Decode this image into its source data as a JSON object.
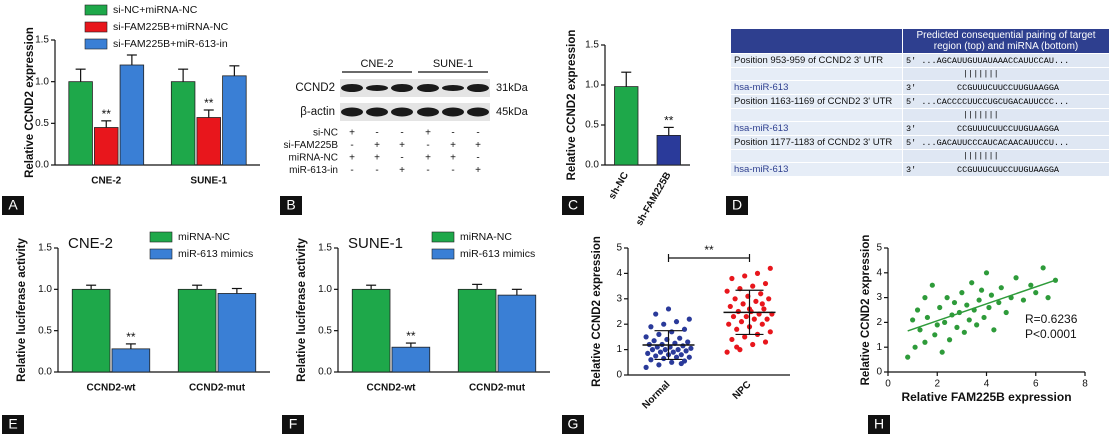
{
  "chart_data": [
    {
      "type": "bar",
      "panel": "A",
      "y_label": "Relative CCND2 expression",
      "categories": [
        "CNE-2",
        "SUNE-1"
      ],
      "series": [
        {
          "name": "si-NC+miRNA-NC",
          "color": "#1ea84a",
          "values": [
            1.0,
            1.0
          ],
          "errors": [
            0.15,
            0.15
          ],
          "annotations": [
            null,
            null
          ]
        },
        {
          "name": "si-FAM225B+miRNA-NC",
          "color": "#e8161c",
          "values": [
            0.45,
            0.57
          ],
          "errors": [
            0.08,
            0.09
          ],
          "annotations": [
            "**",
            "**"
          ]
        },
        {
          "name": "si-FAM225B+miR-613-in",
          "color": "#3a7fd5",
          "values": [
            1.2,
            1.07
          ],
          "errors": [
            0.12,
            0.12
          ],
          "annotations": [
            null,
            null
          ]
        }
      ],
      "ylim": [
        0,
        1.5
      ],
      "yticks": [
        {
          "value": 0,
          "label": "0.0"
        },
        0.5,
        {
          "value": 1,
          "label": "1.0"
        },
        1.5
      ]
    },
    {
      "type": "bar",
      "panel": "C",
      "y_label": "Relative CCND2 expression",
      "categories": [
        "sh-NC",
        "sh-FAM225B"
      ],
      "values": [
        0.98,
        0.37
      ],
      "errors": [
        0.18,
        0.1
      ],
      "colors": [
        "#1ea84a",
        "#2a3a9a"
      ],
      "annotations": [
        null,
        "**"
      ],
      "ylim": [
        0,
        1.5
      ],
      "yticks": [
        {
          "value": 0,
          "label": "0.0"
        },
        0.5,
        {
          "value": 1,
          "label": "1.0"
        },
        1.5
      ]
    },
    {
      "type": "bar",
      "panel": "E",
      "title": "CNE-2",
      "y_label": "Relative luciferase activity",
      "categories": [
        "CCND2-wt",
        "CCND2-mut"
      ],
      "series": [
        {
          "name": "miRNA-NC",
          "color": "#1ea84a",
          "values": [
            1.0,
            1.0
          ],
          "errors": [
            0.05,
            0.05
          ],
          "annotations": [
            null,
            null
          ]
        },
        {
          "name": "miR-613 mimics",
          "color": "#3a7fd5",
          "values": [
            0.28,
            0.95
          ],
          "errors": [
            0.06,
            0.06
          ],
          "annotations": [
            "**",
            null
          ]
        }
      ],
      "ylim": [
        0,
        1.5
      ],
      "yticks": [
        {
          "value": 0,
          "label": "0.0"
        },
        0.5,
        {
          "value": 1,
          "label": "1.0"
        },
        1.5
      ]
    },
    {
      "type": "bar",
      "panel": "F",
      "title": "SUNE-1",
      "y_label": "Relative luciferase activity",
      "categories": [
        "CCND2-wt",
        "CCND2-mut"
      ],
      "series": [
        {
          "name": "miRNA-NC",
          "color": "#1ea84a",
          "values": [
            1.0,
            1.0
          ],
          "errors": [
            0.05,
            0.06
          ],
          "annotations": [
            null,
            null
          ]
        },
        {
          "name": "miR-613 mimics",
          "color": "#3a7fd5",
          "values": [
            0.3,
            0.93
          ],
          "errors": [
            0.05,
            0.07
          ],
          "annotations": [
            "**",
            null
          ]
        }
      ],
      "ylim": [
        0,
        1.5
      ],
      "yticks": [
        {
          "value": 0,
          "label": "0.0"
        },
        0.5,
        {
          "value": 1,
          "label": "1.0"
        },
        1.5
      ]
    },
    {
      "type": "dotplot",
      "panel": "G",
      "y_label": "Relative CCND2 expression",
      "annotation": "**",
      "categories": [
        "Normal",
        "NPC"
      ],
      "colors": [
        "#2a3a9a",
        "#e8161c"
      ],
      "values": [
        [
          0.3,
          0.4,
          0.5,
          0.55,
          0.6,
          0.65,
          0.7,
          0.7,
          0.75,
          0.8,
          0.8,
          0.85,
          0.9,
          0.9,
          0.95,
          1.0,
          1.0,
          1.0,
          1.05,
          1.1,
          1.1,
          1.15,
          1.2,
          1.2,
          1.25,
          1.3,
          1.35,
          1.4,
          1.45,
          1.5,
          1.6,
          1.7,
          1.8,
          1.9,
          2.0,
          2.1,
          2.2,
          2.4,
          2.6,
          0.45
        ],
        [
          0.9,
          1.0,
          1.2,
          1.3,
          1.4,
          1.5,
          1.6,
          1.7,
          1.8,
          1.9,
          2.0,
          2.0,
          2.1,
          2.2,
          2.2,
          2.3,
          2.3,
          2.4,
          2.4,
          2.5,
          2.5,
          2.6,
          2.7,
          2.8,
          2.9,
          3.0,
          3.0,
          3.1,
          3.2,
          3.3,
          3.4,
          3.5,
          3.6,
          3.8,
          3.9,
          4.0,
          4.2,
          1.1,
          2.6,
          2.8
        ]
      ],
      "ylim": [
        0,
        5
      ],
      "yticks": [
        0,
        1,
        2,
        3,
        4,
        5
      ]
    },
    {
      "type": "scatter",
      "panel": "H",
      "x_label": "Relative FAM225B expression",
      "y_label": "Relative CCND2 expression",
      "annotations": [
        "R=0.6236",
        "P<0.0001"
      ],
      "color": "#2e9b3a",
      "x": [
        0.8,
        1.0,
        1.1,
        1.2,
        1.3,
        1.5,
        1.5,
        1.6,
        1.8,
        1.9,
        2.0,
        2.1,
        2.2,
        2.3,
        2.4,
        2.5,
        2.6,
        2.7,
        2.8,
        2.9,
        3.0,
        3.1,
        3.2,
        3.3,
        3.4,
        3.5,
        3.6,
        3.7,
        3.8,
        3.9,
        4.0,
        4.1,
        4.2,
        4.3,
        4.5,
        4.6,
        4.8,
        5.0,
        5.2,
        5.5,
        5.8,
        6.0,
        6.3,
        6.5,
        6.8
      ],
      "y": [
        0.6,
        2.1,
        1.0,
        2.5,
        1.7,
        3.0,
        1.2,
        2.2,
        3.5,
        1.5,
        1.9,
        2.6,
        0.8,
        2.0,
        3.0,
        1.3,
        2.3,
        2.8,
        1.8,
        2.4,
        3.2,
        1.6,
        2.7,
        2.1,
        3.6,
        2.5,
        1.9,
        2.9,
        3.3,
        2.2,
        4.0,
        2.6,
        3.1,
        1.7,
        2.8,
        3.4,
        2.4,
        3.0,
        3.8,
        2.9,
        3.5,
        3.2,
        4.2,
        3.0,
        3.7
      ],
      "xlim": [
        0,
        8
      ],
      "xticks": [
        0,
        2,
        4,
        6,
        8
      ],
      "ylim": [
        0,
        5
      ],
      "yticks": [
        0,
        1,
        2,
        3,
        4,
        5
      ]
    }
  ],
  "blot": {
    "panel": "B",
    "groups": [
      "CNE-2",
      "SUNE-1"
    ],
    "rows": [
      "CCND2",
      "β-actin"
    ],
    "sizes": [
      "31kDa",
      "45kDa"
    ],
    "conditions": [
      {
        "name": "si-NC",
        "marks": [
          "+",
          "-",
          "-",
          "+",
          "-",
          "-"
        ]
      },
      {
        "name": "si-FAM225B",
        "marks": [
          "-",
          "+",
          "+",
          "-",
          "+",
          "+"
        ]
      },
      {
        "name": "miRNA-NC",
        "marks": [
          "+",
          "+",
          "-",
          "+",
          "+",
          "-"
        ]
      },
      {
        "name": "miR-613-in",
        "marks": [
          "-",
          "-",
          "+",
          "-",
          "-",
          "+"
        ]
      }
    ]
  },
  "alignment": {
    "panel": "D",
    "header": "Predicted consequential pairing of target region (top) and miRNA (bottom)",
    "rows": [
      {
        "position": "Position 953-959 of CCND2 3' UTR",
        "top_end": "5'",
        "top": "...AGCAUUGUUAUAAACCAUUCCAU...",
        "pairs": "|||||||",
        "mirna": "hsa-miR-613",
        "bottom_end": "3'",
        "bottom": "CCGUUUCUUCCUUGUAAGGA"
      },
      {
        "position": "Position 1163-1169 of CCND2 3' UTR",
        "top_end": "5'",
        "top": "...CACCCCUUCCUGCUGACAUUCCC...",
        "pairs": "|||||||",
        "mirna": "hsa-miR-613",
        "bottom_end": "3'",
        "bottom": "CCGUUUCUUCCUUGUAAGGA"
      },
      {
        "position": "Position 1177-1183 of CCND2 3' UTR",
        "top_end": "5'",
        "top": "...GACAUUCCCAUCACAACAUUCCU...",
        "pairs": "|||||||",
        "mirna": "hsa-miR-613",
        "bottom_end": "3'",
        "bottom": "CCGUUUCUUCCUUGUAAGGA"
      }
    ]
  }
}
